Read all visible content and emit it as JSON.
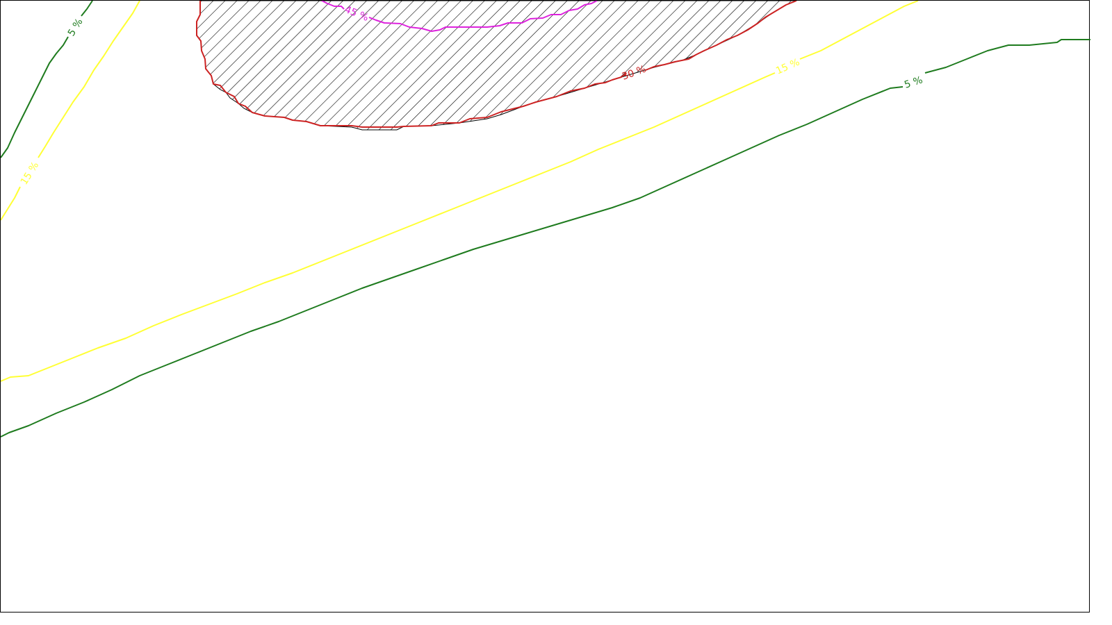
{
  "map": {
    "contours": [
      {
        "id": "green-left",
        "label": "5 %",
        "color": "#1e7b1e"
      },
      {
        "id": "yellow-left",
        "label": "15 %",
        "color": "#ffff33"
      },
      {
        "id": "yellow-main",
        "label": "15 %",
        "color": "#ffff33"
      },
      {
        "id": "green-main",
        "label": "5 %",
        "color": "#1e7b1e"
      },
      {
        "id": "red-zone",
        "label": "30 %",
        "color": "#cc2222"
      },
      {
        "id": "magenta-zone",
        "label": "45 %",
        "color": "#dd22dd"
      }
    ],
    "hatched_zone": {
      "pattern": "diagonal-hatch",
      "color": "#000000"
    }
  }
}
